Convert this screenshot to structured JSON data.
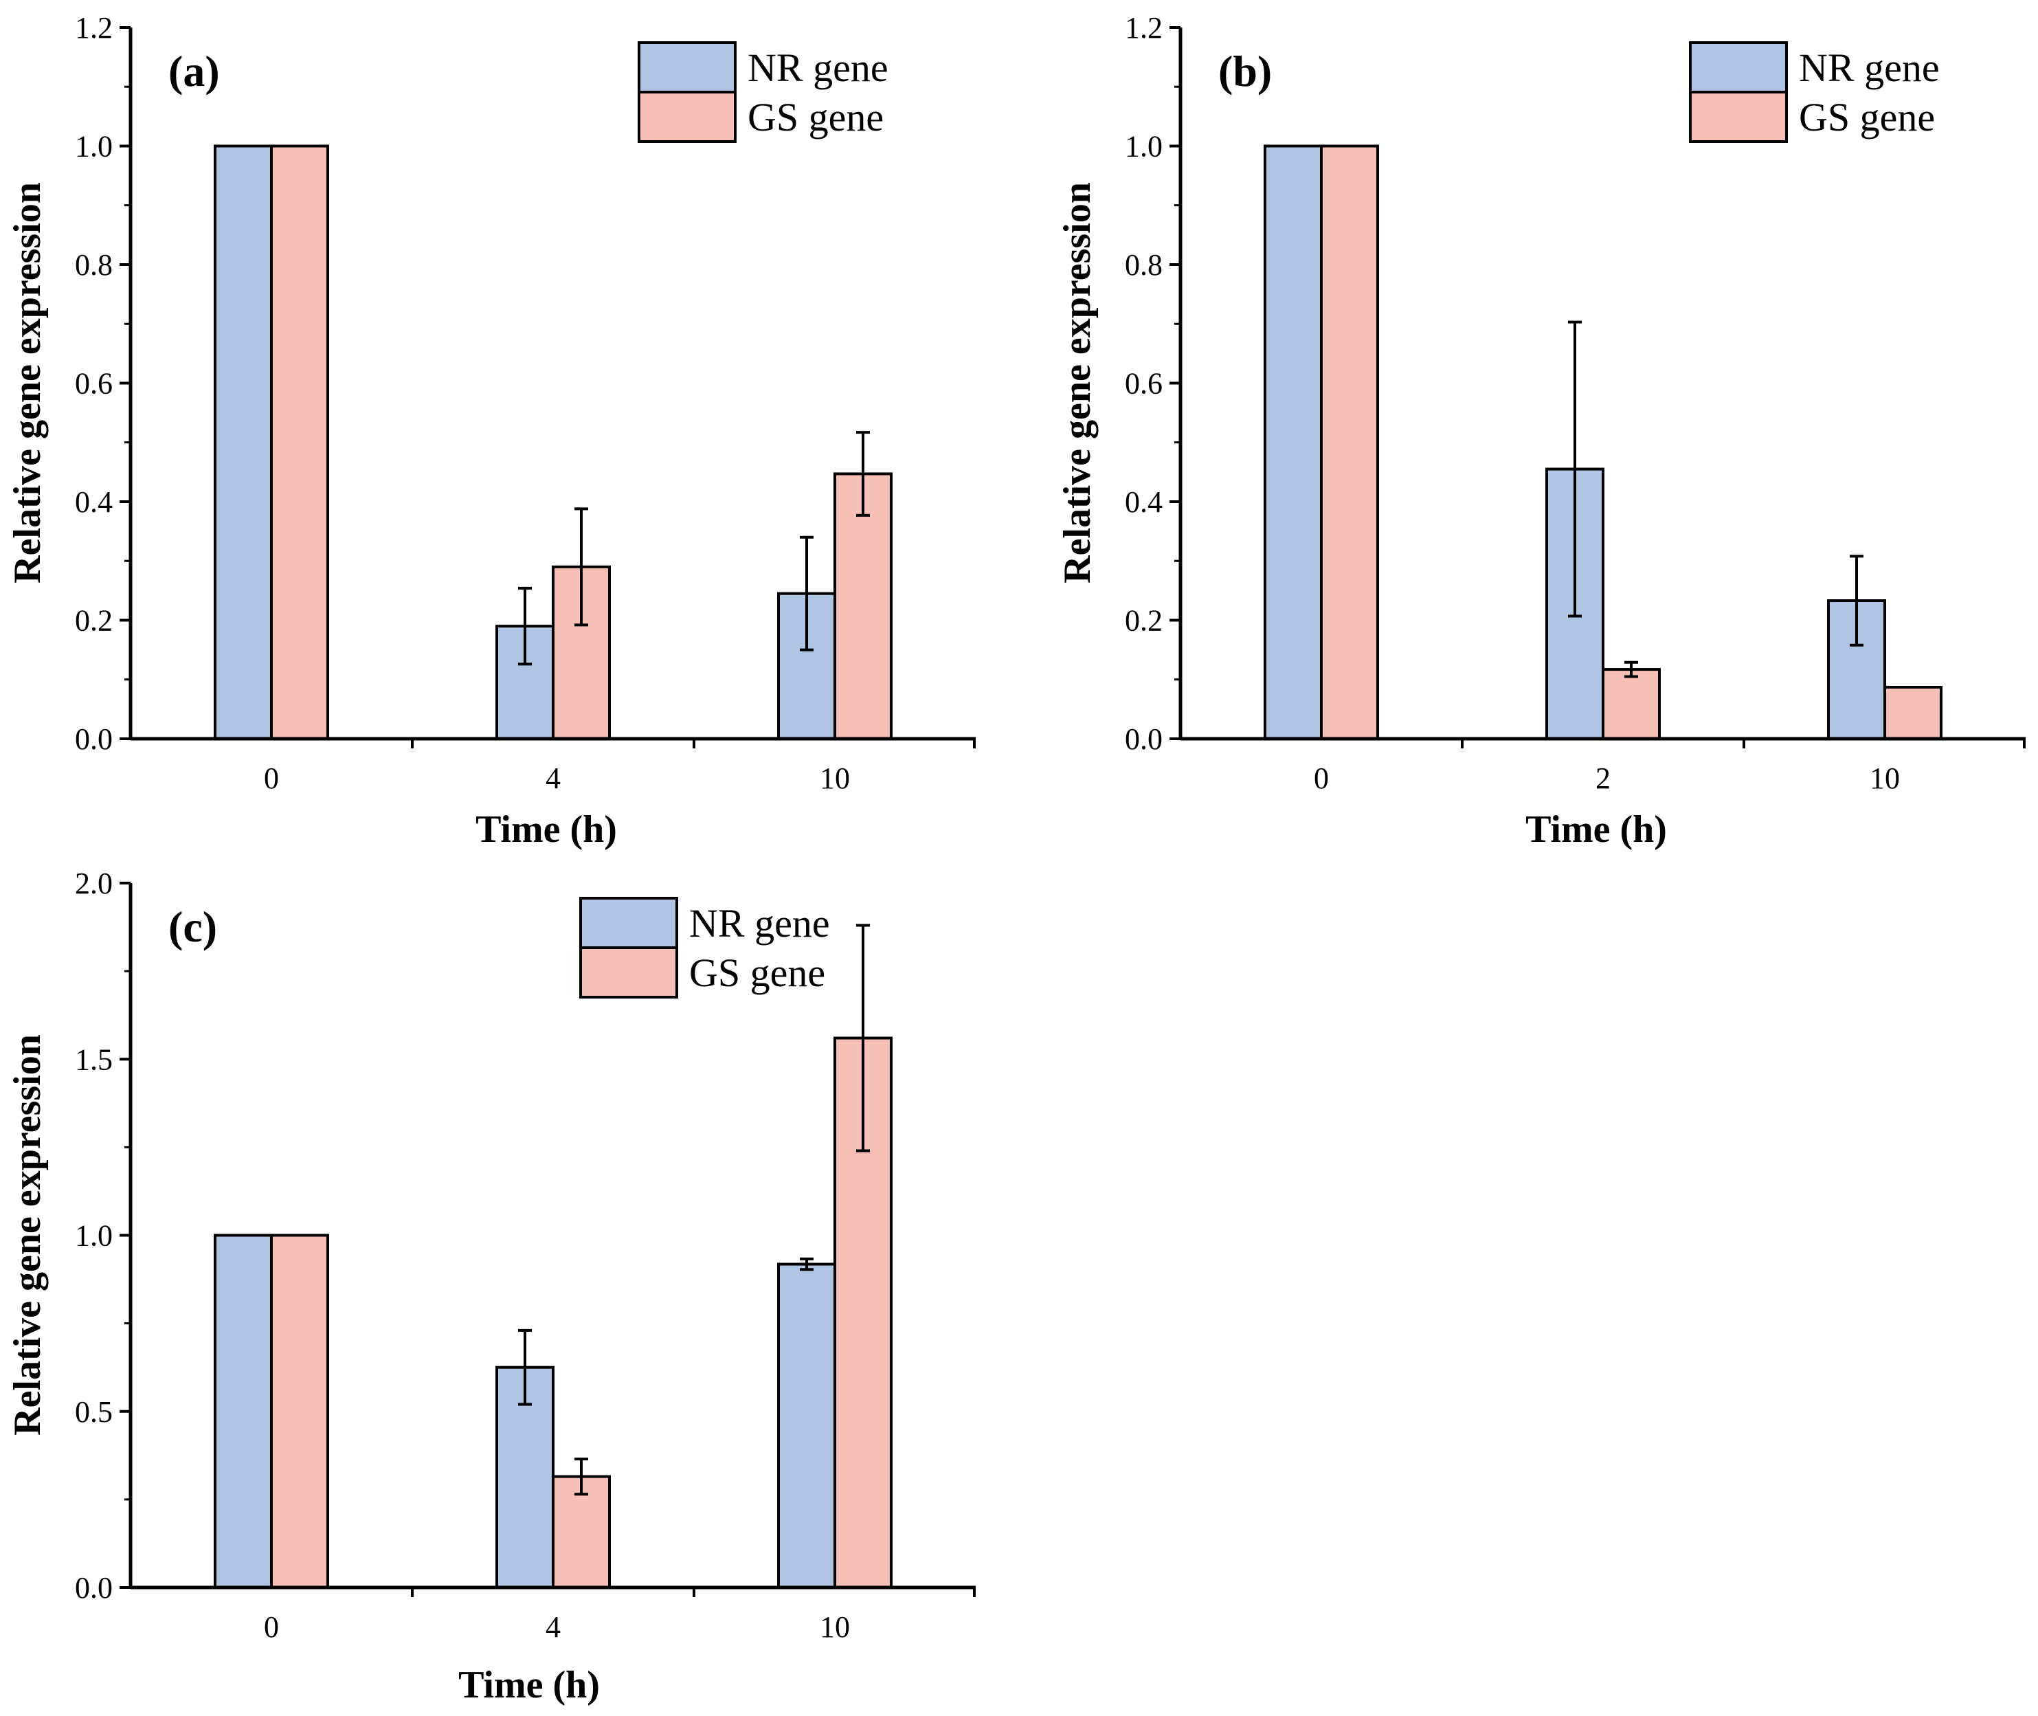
{
  "colors": {
    "nr": "#b0c5e3",
    "gs": "#f7c0b6",
    "stroke": "#000000"
  },
  "chart_data": [
    {
      "type": "bar",
      "panel_label": "(a)",
      "categories": [
        "0",
        "4",
        "10"
      ],
      "series": [
        {
          "name": "NR gene",
          "values": [
            1.0,
            0.19,
            0.245
          ],
          "errors": [
            0,
            0.064,
            0.095
          ]
        },
        {
          "name": "GS gene",
          "values": [
            1.0,
            0.29,
            0.447
          ],
          "errors": [
            0,
            0.098,
            0.07
          ]
        }
      ],
      "xlabel": "Time (h)",
      "ylabel": "Relative gene expression",
      "ylim": [
        0,
        1.2
      ],
      "yticks": [
        "0.0",
        "0.2",
        "0.4",
        "0.6",
        "0.8",
        "1.0",
        "1.2"
      ],
      "legend": [
        "NR gene",
        "GS gene"
      ],
      "legend_position": "top-right"
    },
    {
      "type": "bar",
      "panel_label": "(b)",
      "categories": [
        "0",
        "2",
        "10"
      ],
      "series": [
        {
          "name": "NR gene",
          "values": [
            1.0,
            0.455,
            0.233
          ],
          "errors": [
            0,
            0.248,
            0.075
          ]
        },
        {
          "name": "GS gene",
          "values": [
            1.0,
            0.117,
            0.087
          ],
          "errors": [
            0,
            0.012,
            0
          ]
        }
      ],
      "xlabel": "Time (h)",
      "ylabel": "Relative gene expression",
      "ylim": [
        0,
        1.2
      ],
      "yticks": [
        "0.0",
        "0.2",
        "0.4",
        "0.6",
        "0.8",
        "1.0",
        "1.2"
      ],
      "legend": [
        "NR gene",
        "GS gene"
      ],
      "legend_position": "top-right"
    },
    {
      "type": "bar",
      "panel_label": "(c)",
      "categories": [
        "0",
        "4",
        "10"
      ],
      "series": [
        {
          "name": "NR gene",
          "values": [
            1.0,
            0.625,
            0.918
          ],
          "errors": [
            0,
            0.105,
            0.015
          ]
        },
        {
          "name": "GS gene",
          "values": [
            1.0,
            0.315,
            1.56
          ],
          "errors": [
            0,
            0.05,
            0.32
          ]
        }
      ],
      "xlabel": "Time (h)",
      "ylabel": "Relative gene expression",
      "ylim": [
        0,
        2.0
      ],
      "yticks": [
        "0.0",
        "0.5",
        "1.0",
        "1.5",
        "2.0"
      ],
      "legend": [
        "NR gene",
        "GS gene"
      ],
      "legend_position": "top-center"
    }
  ]
}
